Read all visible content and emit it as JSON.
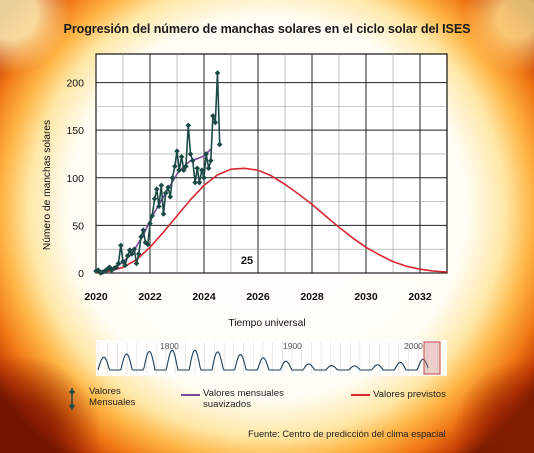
{
  "chart_data": {
    "type": "line",
    "title": "Progresión del número de manchas solares en el ciclo solar del ISES",
    "xlabel": "Tiempo universal",
    "ylabel": "Número de manchas solares",
    "xlim": [
      2020,
      2033
    ],
    "ylim": [
      0,
      230
    ],
    "x_ticks": [
      "2020",
      "2022",
      "2024",
      "2026",
      "2028",
      "2030",
      "2032"
    ],
    "y_ticks": [
      "0",
      "50",
      "100",
      "150",
      "200"
    ],
    "annotation": "25",
    "grid": true,
    "legend_position": "bottom",
    "series": [
      {
        "name": "Valores Mensuales",
        "color": "#1b4a46",
        "marker": "diamond",
        "x": [
          2020.0,
          2020.08,
          2020.17,
          2020.25,
          2020.33,
          2020.42,
          2020.5,
          2020.58,
          2020.67,
          2020.75,
          2020.83,
          2020.92,
          2021.0,
          2021.08,
          2021.17,
          2021.25,
          2021.33,
          2021.42,
          2021.5,
          2021.58,
          2021.67,
          2021.75,
          2021.83,
          2021.92,
          2022.0,
          2022.08,
          2022.17,
          2022.25,
          2022.33,
          2022.42,
          2022.5,
          2022.58,
          2022.67,
          2022.75,
          2022.83,
          2022.92,
          2023.0,
          2023.08,
          2023.17,
          2023.25,
          2023.33,
          2023.42,
          2023.5,
          2023.58,
          2023.67,
          2023.75,
          2023.83,
          2023.92,
          2024.0,
          2024.08,
          2024.17,
          2024.25,
          2024.33,
          2024.42,
          2024.5,
          2024.58
        ],
        "y": [
          2,
          3,
          0,
          1,
          2,
          4,
          6,
          3,
          5,
          6,
          10,
          29,
          12,
          8,
          18,
          24,
          20,
          25,
          10,
          20,
          38,
          45,
          32,
          30,
          52,
          60,
          78,
          88,
          70,
          92,
          62,
          84,
          90,
          80,
          100,
          112,
          128,
          108,
          122,
          108,
          112,
          155,
          125,
          118,
          95,
          110,
          95,
          108,
          100,
          125,
          110,
          118,
          165,
          158,
          210,
          135
        ]
      },
      {
        "name": "Valores mensuales suavizados",
        "color": "#7a4a9e",
        "x": [
          2020.0,
          2020.25,
          2020.5,
          2020.75,
          2021.0,
          2021.25,
          2021.5,
          2021.75,
          2022.0,
          2022.25,
          2022.5,
          2022.75,
          2023.0,
          2023.25,
          2023.5,
          2023.75,
          2024.0,
          2024.25
        ],
        "y": [
          2,
          2,
          3,
          6,
          12,
          18,
          28,
          40,
          55,
          68,
          80,
          92,
          104,
          112,
          118,
          120,
          123,
          130
        ]
      },
      {
        "name": "Valores previstos",
        "color": "#d8262f",
        "x": [
          2020.0,
          2020.5,
          2021.0,
          2021.5,
          2022.0,
          2022.5,
          2023.0,
          2023.5,
          2024.0,
          2024.5,
          2025.0,
          2025.5,
          2026.0,
          2026.5,
          2027.0,
          2027.5,
          2028.0,
          2028.5,
          2029.0,
          2029.5,
          2030.0,
          2030.5,
          2031.0,
          2031.5,
          2032.0,
          2032.5,
          2033.0
        ],
        "y": [
          0,
          2,
          6,
          14,
          27,
          43,
          60,
          77,
          92,
          103,
          109,
          110,
          108,
          102,
          93,
          83,
          72,
          60,
          48,
          37,
          27,
          19,
          12,
          7,
          4,
          2,
          1
        ]
      }
    ],
    "overview_strip": {
      "labels": [
        "1800",
        "1900",
        "2000"
      ]
    }
  },
  "legend": {
    "monthly": "Valores\nMensuales",
    "smoothed": "Valores mensuales\nsuavizados",
    "predicted": "Valores previstos"
  },
  "source": "Fuente: Centro de predicción del clima espacial"
}
